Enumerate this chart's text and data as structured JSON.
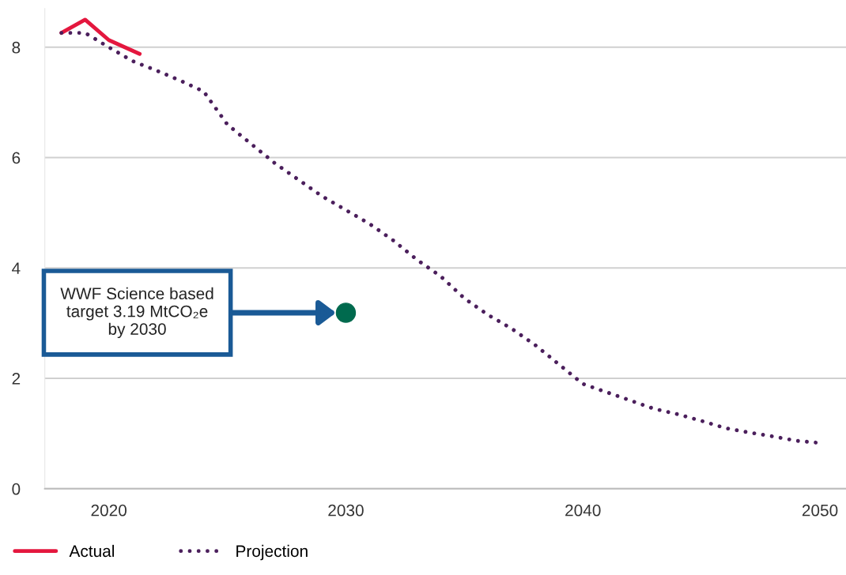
{
  "chart_data": {
    "type": "line",
    "xlim": [
      2017.3,
      2051.1
    ],
    "ylim": [
      0,
      8.7
    ],
    "xticks": [
      2020,
      2030,
      2040,
      2050
    ],
    "yticks": [
      0,
      2,
      4,
      6,
      8
    ],
    "grid": "y",
    "legend": "bottom left",
    "series": [
      {
        "name": "Actual",
        "color": "#e4173e",
        "line_style": "solid",
        "x": [
          2018,
          2019,
          2020,
          2021.3
        ],
        "values": [
          8.26,
          8.5,
          8.13,
          7.88
        ]
      },
      {
        "name": "Projection",
        "color": "#4b1f5c",
        "line_style": "dotted",
        "x": [
          2018,
          2019,
          2020,
          2021,
          2022,
          2023,
          2024,
          2025,
          2026,
          2027,
          2028,
          2029,
          2030,
          2031,
          2032,
          2033,
          2034,
          2035,
          2036,
          2037,
          2038,
          2039,
          2040,
          2041,
          2042,
          2043,
          2044,
          2045,
          2046,
          2047,
          2048,
          2049,
          2050
        ],
        "values": [
          8.26,
          8.26,
          8.0,
          7.75,
          7.58,
          7.4,
          7.2,
          6.6,
          6.25,
          5.9,
          5.6,
          5.3,
          5.05,
          4.8,
          4.5,
          4.15,
          3.85,
          3.45,
          3.15,
          2.9,
          2.6,
          2.25,
          1.9,
          1.75,
          1.6,
          1.45,
          1.35,
          1.23,
          1.1,
          1.02,
          0.95,
          0.87,
          0.83
        ]
      },
      {
        "type": "scatter",
        "marker": "circle",
        "color": "#006a4e",
        "x": [
          2030
        ],
        "values": [
          3.19
        ]
      }
    ],
    "annotations": [
      "WWF Science based\ntarget 3.19 MtCO₂e\nby 2030"
    ]
  }
}
